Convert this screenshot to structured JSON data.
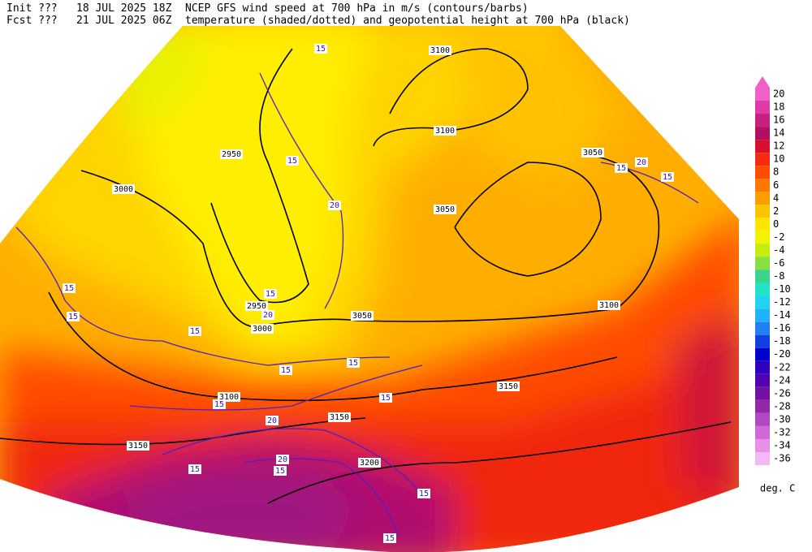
{
  "header": {
    "init_label": "Init  ???",
    "init_time": "18 JUL 2025 18Z",
    "fcst_label": "Fcst ???",
    "fcst_time": "21 JUL 2025 06Z",
    "line1": "NCEP GFS wind speed at 700 hPa in m/s (contours/barbs)",
    "line2": "temperature (shaded/dotted) and geopotential height at 700 hPa (black)"
  },
  "colorbar": {
    "levels": [
      20,
      18,
      16,
      14,
      12,
      10,
      8,
      6,
      4,
      2,
      0,
      -2,
      -4,
      -6,
      -8,
      -10,
      -12,
      -14,
      -16,
      -18,
      -20,
      -22,
      -24,
      -26,
      -28,
      -30,
      -32,
      -34,
      -36
    ],
    "colors": [
      "#f060c8",
      "#e03aa6",
      "#c82080",
      "#b01060",
      "#d81030",
      "#f52a10",
      "#ff4d00",
      "#ff7600",
      "#ff9c00",
      "#ffc400",
      "#ffe600",
      "#f0f400",
      "#c4ee10",
      "#86e040",
      "#3ad48a",
      "#22e2c8",
      "#22d2f2",
      "#20b2fa",
      "#2080f2",
      "#1040e0",
      "#0000cc",
      "#3000c0",
      "#5200b0",
      "#7410a2",
      "#9428a8",
      "#b448c4",
      "#d068d8",
      "#e890e8",
      "#f4b8f4"
    ],
    "unit": "deg. C"
  },
  "height_labels": [
    3100,
    3100,
    2950,
    3000,
    3050,
    2950,
    3000,
    3050,
    3100,
    3150,
    3150,
    3150,
    3200,
    3100,
    3050
  ],
  "wind_labels": [
    15,
    15,
    20,
    15,
    15,
    15,
    15,
    15,
    15,
    15,
    20,
    20,
    15,
    15,
    15,
    15,
    15,
    20,
    15,
    20,
    15
  ]
}
